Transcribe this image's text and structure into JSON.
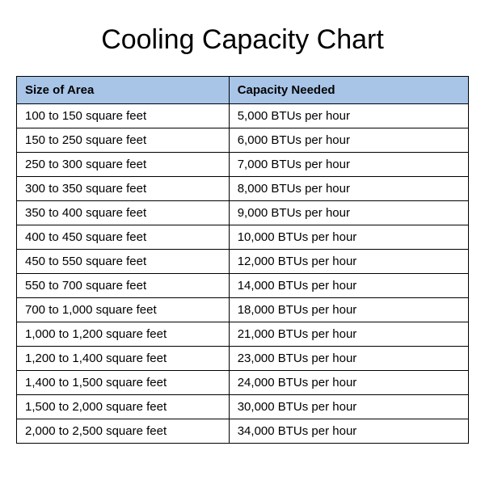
{
  "title": "Cooling Capacity Chart",
  "table": {
    "header_background": "#a8c5e8",
    "border_color": "#000000",
    "columns": [
      "Size of Area",
      "Capacity Needed"
    ],
    "rows": [
      [
        "100 to 150 square feet",
        "5,000 BTUs per hour"
      ],
      [
        "150 to 250 square feet",
        "6,000 BTUs per hour"
      ],
      [
        "250 to 300 square feet",
        "7,000 BTUs per hour"
      ],
      [
        "300 to 350 square feet",
        "8,000 BTUs per hour"
      ],
      [
        "350 to 400 square feet",
        "9,000 BTUs per hour"
      ],
      [
        "400 to 450 square feet",
        "10,000 BTUs per hour"
      ],
      [
        "450 to 550 square feet",
        "12,000 BTUs per hour"
      ],
      [
        "550 to 700 square feet",
        "14,000 BTUs per hour"
      ],
      [
        "700 to 1,000 square feet",
        "18,000 BTUs per hour"
      ],
      [
        "1,000 to 1,200 square feet",
        "21,000 BTUs per hour"
      ],
      [
        "1,200 to 1,400 square feet",
        "23,000 BTUs per hour"
      ],
      [
        "1,400 to 1,500 square feet",
        "24,000 BTUs per hour"
      ],
      [
        "1,500 to 2,000 square feet",
        "30,000 BTUs per hour"
      ],
      [
        "2,000 to 2,500 square feet",
        "34,000 BTUs per hour"
      ]
    ]
  }
}
